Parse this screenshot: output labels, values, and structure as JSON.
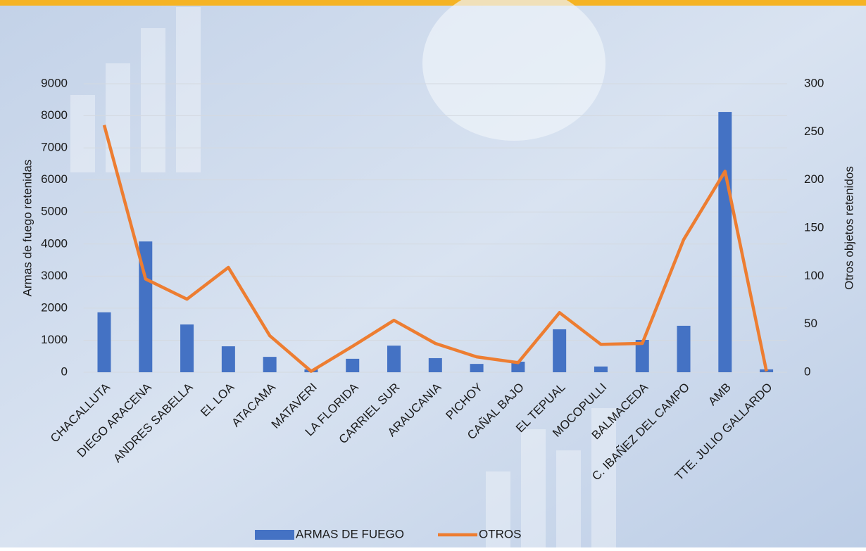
{
  "chart_data": {
    "type": "bar_line",
    "categories": [
      "CHACALLUTA",
      "DIEGO ARACENA",
      "ANDRES SABELLA",
      "EL LOA",
      "ATACAMA",
      "MATAVERI",
      "LA FLORIDA",
      "CARRIEL SUR",
      "ARAUCANIA",
      "PICHOY",
      "CAÑAL BAJO",
      "EL TEPUAL",
      "MOCOPULLI",
      "BALMACEDA",
      "C. IBAÑEZ DEL CAMPO",
      "AMB",
      "TTE. JULIO GALLARDO"
    ],
    "series": [
      {
        "name": "ARMAS DE FUEGO",
        "type": "bar",
        "color": "#4472c4",
        "values": [
          1870,
          4080,
          1490,
          810,
          480,
          90,
          420,
          830,
          440,
          260,
          330,
          1340,
          180,
          1010,
          1450,
          8120,
          90
        ]
      },
      {
        "name": "OTROS",
        "type": "line",
        "axis": "y2",
        "color": "#ed7d31",
        "values": [
          257,
          97,
          76,
          109,
          38,
          1,
          27,
          54,
          30,
          16,
          10,
          62,
          29,
          30,
          138,
          209,
          1
        ]
      }
    ],
    "ylabel": "Armas de fuego retenidas",
    "y2label": "Otros objetos retenidos",
    "ylim": [
      0,
      9000
    ],
    "yticks": [
      0,
      1000,
      2000,
      3000,
      4000,
      5000,
      6000,
      7000,
      8000,
      9000
    ],
    "y2lim": [
      0,
      300
    ],
    "y2ticks": [
      0,
      50,
      100,
      150,
      200,
      250,
      300
    ],
    "grid": true,
    "legend": "bottom"
  }
}
